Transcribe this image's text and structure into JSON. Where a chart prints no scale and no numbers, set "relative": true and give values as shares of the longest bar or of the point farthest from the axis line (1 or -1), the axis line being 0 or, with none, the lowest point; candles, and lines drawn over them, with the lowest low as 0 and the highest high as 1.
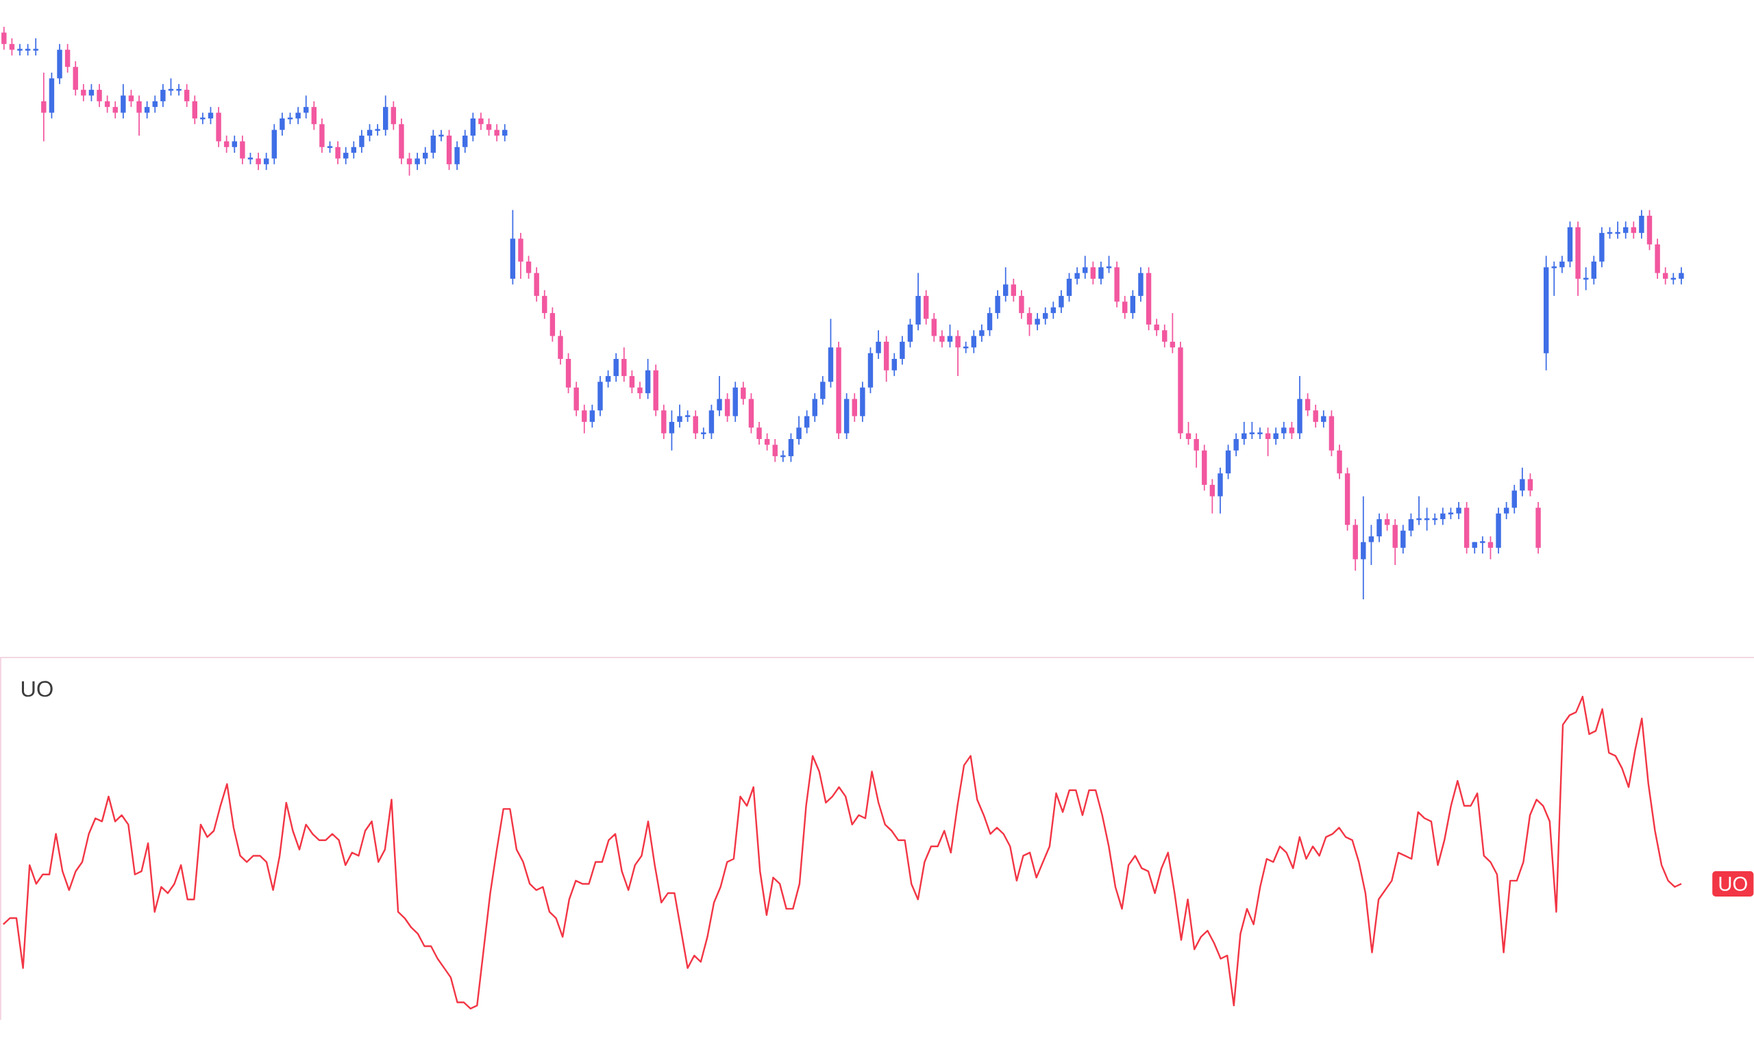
{
  "chart_data": [
    {
      "type": "candlestick",
      "relative": true,
      "categories": [
        null,
        null,
        null,
        null,
        null,
        null,
        null,
        null,
        null,
        null,
        null,
        null,
        null,
        null,
        null,
        null,
        null,
        null,
        null,
        null,
        null,
        null,
        null,
        null,
        null,
        null,
        null,
        null,
        null,
        null,
        null,
        null,
        null,
        null,
        null,
        null,
        null,
        null,
        null,
        null,
        null,
        null,
        null,
        null,
        null,
        null,
        null,
        null,
        null,
        null,
        null,
        null,
        null,
        null,
        null,
        null,
        null,
        null,
        null,
        null,
        null,
        null,
        null,
        null,
        null,
        null,
        null,
        null,
        null,
        null,
        null,
        null,
        null,
        null,
        null,
        null,
        null,
        null,
        null,
        null,
        null,
        null,
        null,
        null,
        null,
        null,
        null,
        null,
        null,
        null,
        null,
        null,
        null,
        null,
        null,
        null,
        null,
        null,
        null,
        null,
        null,
        null,
        null,
        null,
        null,
        null,
        null,
        null,
        null,
        null,
        null,
        null,
        null,
        null,
        null,
        null,
        null,
        null,
        null,
        null,
        null,
        null,
        null,
        null,
        null,
        null,
        null,
        null,
        null,
        null,
        null,
        null,
        null,
        null,
        null,
        null,
        null,
        null,
        null,
        null,
        null,
        null,
        null,
        null,
        null,
        null,
        null,
        null,
        null,
        null,
        null,
        null,
        null,
        null,
        null,
        null,
        null,
        null,
        null,
        null,
        null,
        null,
        null,
        null,
        null,
        null,
        null,
        null,
        null,
        null,
        null,
        null,
        null,
        null,
        null,
        null,
        null,
        null,
        null,
        null,
        null,
        null,
        null,
        null,
        null,
        null,
        null,
        null,
        null,
        null,
        null,
        null,
        null,
        null,
        null,
        null,
        null,
        null,
        null,
        null,
        null,
        null,
        null,
        null,
        null,
        null,
        null,
        null,
        null,
        null,
        null,
        null
      ],
      "ohlc": [
        [
          0.99,
          1.0,
          0.96,
          0.97
        ],
        [
          0.97,
          0.98,
          0.95,
          0.96
        ],
        [
          0.96,
          0.97,
          0.95,
          0.96
        ],
        [
          0.96,
          0.97,
          0.95,
          0.96
        ],
        [
          0.96,
          0.98,
          0.95,
          0.96
        ],
        [
          0.87,
          0.92,
          0.8,
          0.85
        ],
        [
          0.85,
          0.92,
          0.84,
          0.91
        ],
        [
          0.91,
          0.97,
          0.9,
          0.96
        ],
        [
          0.96,
          0.97,
          0.92,
          0.93
        ],
        [
          0.93,
          0.94,
          0.88,
          0.89
        ],
        [
          0.89,
          0.9,
          0.87,
          0.88
        ],
        [
          0.88,
          0.9,
          0.87,
          0.89
        ],
        [
          0.89,
          0.9,
          0.86,
          0.87
        ],
        [
          0.87,
          0.88,
          0.85,
          0.86
        ],
        [
          0.86,
          0.87,
          0.84,
          0.85
        ],
        [
          0.85,
          0.9,
          0.84,
          0.88
        ],
        [
          0.88,
          0.89,
          0.86,
          0.87
        ],
        [
          0.87,
          0.88,
          0.81,
          0.85
        ],
        [
          0.85,
          0.87,
          0.84,
          0.86
        ],
        [
          0.86,
          0.88,
          0.85,
          0.87
        ],
        [
          0.87,
          0.9,
          0.86,
          0.89
        ],
        [
          0.89,
          0.91,
          0.88,
          0.89
        ],
        [
          0.89,
          0.9,
          0.88,
          0.89
        ],
        [
          0.89,
          0.9,
          0.86,
          0.87
        ],
        [
          0.87,
          0.88,
          0.83,
          0.84
        ],
        [
          0.84,
          0.85,
          0.83,
          0.84
        ],
        [
          0.84,
          0.86,
          0.83,
          0.85
        ],
        [
          0.85,
          0.86,
          0.79,
          0.8
        ],
        [
          0.8,
          0.81,
          0.78,
          0.79
        ],
        [
          0.79,
          0.81,
          0.78,
          0.8
        ],
        [
          0.8,
          0.81,
          0.76,
          0.77
        ],
        [
          0.77,
          0.78,
          0.76,
          0.77
        ],
        [
          0.77,
          0.78,
          0.75,
          0.76
        ],
        [
          0.76,
          0.78,
          0.75,
          0.77
        ],
        [
          0.77,
          0.83,
          0.76,
          0.82
        ],
        [
          0.82,
          0.85,
          0.81,
          0.84
        ],
        [
          0.84,
          0.85,
          0.83,
          0.84
        ],
        [
          0.84,
          0.86,
          0.83,
          0.85
        ],
        [
          0.85,
          0.88,
          0.84,
          0.86
        ],
        [
          0.86,
          0.87,
          0.82,
          0.83
        ],
        [
          0.83,
          0.84,
          0.78,
          0.79
        ],
        [
          0.79,
          0.8,
          0.78,
          0.79
        ],
        [
          0.79,
          0.8,
          0.76,
          0.77
        ],
        [
          0.77,
          0.79,
          0.76,
          0.78
        ],
        [
          0.78,
          0.8,
          0.77,
          0.79
        ],
        [
          0.79,
          0.82,
          0.78,
          0.81
        ],
        [
          0.81,
          0.83,
          0.8,
          0.82
        ],
        [
          0.82,
          0.83,
          0.81,
          0.82
        ],
        [
          0.82,
          0.88,
          0.81,
          0.86
        ],
        [
          0.86,
          0.87,
          0.82,
          0.83
        ],
        [
          0.83,
          0.84,
          0.76,
          0.77
        ],
        [
          0.77,
          0.78,
          0.74,
          0.76
        ],
        [
          0.76,
          0.78,
          0.75,
          0.77
        ],
        [
          0.77,
          0.79,
          0.76,
          0.78
        ],
        [
          0.78,
          0.82,
          0.77,
          0.81
        ],
        [
          0.81,
          0.82,
          0.8,
          0.81
        ],
        [
          0.81,
          0.82,
          0.75,
          0.76
        ],
        [
          0.76,
          0.8,
          0.75,
          0.79
        ],
        [
          0.79,
          0.82,
          0.78,
          0.81
        ],
        [
          0.81,
          0.85,
          0.8,
          0.84
        ],
        [
          0.84,
          0.85,
          0.82,
          0.83
        ],
        [
          0.83,
          0.84,
          0.81,
          0.82
        ],
        [
          0.82,
          0.83,
          0.8,
          0.81
        ],
        [
          0.81,
          0.83,
          0.8,
          0.82
        ],
        [
          0.56,
          0.68,
          0.55,
          0.63
        ],
        [
          0.63,
          0.64,
          0.56,
          0.59
        ],
        [
          0.59,
          0.6,
          0.56,
          0.57
        ],
        [
          0.57,
          0.58,
          0.52,
          0.53
        ],
        [
          0.53,
          0.54,
          0.49,
          0.5
        ],
        [
          0.5,
          0.51,
          0.45,
          0.46
        ],
        [
          0.46,
          0.47,
          0.41,
          0.42
        ],
        [
          0.42,
          0.43,
          0.36,
          0.37
        ],
        [
          0.37,
          0.38,
          0.32,
          0.33
        ],
        [
          0.33,
          0.34,
          0.29,
          0.31
        ],
        [
          0.31,
          0.34,
          0.3,
          0.33
        ],
        [
          0.33,
          0.39,
          0.32,
          0.38
        ],
        [
          0.38,
          0.4,
          0.37,
          0.39
        ],
        [
          0.39,
          0.43,
          0.38,
          0.42
        ],
        [
          0.42,
          0.44,
          0.38,
          0.39
        ],
        [
          0.39,
          0.4,
          0.36,
          0.37
        ],
        [
          0.37,
          0.38,
          0.35,
          0.36
        ],
        [
          0.36,
          0.42,
          0.35,
          0.4
        ],
        [
          0.4,
          0.41,
          0.32,
          0.33
        ],
        [
          0.33,
          0.34,
          0.28,
          0.29
        ],
        [
          0.29,
          0.33,
          0.26,
          0.31
        ],
        [
          0.31,
          0.34,
          0.3,
          0.32
        ],
        [
          0.32,
          0.33,
          0.31,
          0.32
        ],
        [
          0.32,
          0.33,
          0.28,
          0.29
        ],
        [
          0.29,
          0.3,
          0.28,
          0.29
        ],
        [
          0.29,
          0.34,
          0.28,
          0.33
        ],
        [
          0.33,
          0.39,
          0.32,
          0.35
        ],
        [
          0.35,
          0.36,
          0.31,
          0.32
        ],
        [
          0.32,
          0.38,
          0.31,
          0.37
        ],
        [
          0.37,
          0.38,
          0.34,
          0.35
        ],
        [
          0.35,
          0.36,
          0.29,
          0.3
        ],
        [
          0.3,
          0.31,
          0.27,
          0.28
        ],
        [
          0.28,
          0.29,
          0.26,
          0.27
        ],
        [
          0.27,
          0.28,
          0.24,
          0.25
        ],
        [
          0.25,
          0.26,
          0.24,
          0.25
        ],
        [
          0.25,
          0.29,
          0.24,
          0.28
        ],
        [
          0.28,
          0.32,
          0.27,
          0.3
        ],
        [
          0.3,
          0.33,
          0.29,
          0.32
        ],
        [
          0.32,
          0.36,
          0.31,
          0.35
        ],
        [
          0.35,
          0.39,
          0.34,
          0.38
        ],
        [
          0.38,
          0.49,
          0.37,
          0.44
        ],
        [
          0.44,
          0.45,
          0.28,
          0.29
        ],
        [
          0.29,
          0.36,
          0.28,
          0.35
        ],
        [
          0.35,
          0.36,
          0.31,
          0.32
        ],
        [
          0.32,
          0.38,
          0.31,
          0.37
        ],
        [
          0.37,
          0.44,
          0.36,
          0.43
        ],
        [
          0.43,
          0.47,
          0.42,
          0.45
        ],
        [
          0.45,
          0.46,
          0.38,
          0.4
        ],
        [
          0.4,
          0.43,
          0.39,
          0.42
        ],
        [
          0.42,
          0.46,
          0.41,
          0.45
        ],
        [
          0.45,
          0.49,
          0.44,
          0.48
        ],
        [
          0.48,
          0.57,
          0.47,
          0.53
        ],
        [
          0.53,
          0.54,
          0.48,
          0.49
        ],
        [
          0.49,
          0.5,
          0.45,
          0.46
        ],
        [
          0.46,
          0.47,
          0.44,
          0.45
        ],
        [
          0.45,
          0.48,
          0.44,
          0.46
        ],
        [
          0.46,
          0.47,
          0.39,
          0.44
        ],
        [
          0.44,
          0.45,
          0.43,
          0.44
        ],
        [
          0.44,
          0.47,
          0.43,
          0.46
        ],
        [
          0.46,
          0.48,
          0.45,
          0.47
        ],
        [
          0.47,
          0.51,
          0.46,
          0.5
        ],
        [
          0.5,
          0.54,
          0.49,
          0.53
        ],
        [
          0.53,
          0.58,
          0.52,
          0.55
        ],
        [
          0.55,
          0.56,
          0.52,
          0.53
        ],
        [
          0.53,
          0.54,
          0.49,
          0.5
        ],
        [
          0.5,
          0.51,
          0.46,
          0.48
        ],
        [
          0.48,
          0.5,
          0.47,
          0.49
        ],
        [
          0.49,
          0.51,
          0.48,
          0.5
        ],
        [
          0.5,
          0.52,
          0.49,
          0.51
        ],
        [
          0.51,
          0.54,
          0.5,
          0.53
        ],
        [
          0.53,
          0.57,
          0.52,
          0.56
        ],
        [
          0.56,
          0.58,
          0.55,
          0.57
        ],
        [
          0.57,
          0.6,
          0.56,
          0.58
        ],
        [
          0.58,
          0.59,
          0.55,
          0.56
        ],
        [
          0.56,
          0.59,
          0.55,
          0.58
        ],
        [
          0.58,
          0.6,
          0.57,
          0.58
        ],
        [
          0.58,
          0.59,
          0.51,
          0.52
        ],
        [
          0.52,
          0.53,
          0.49,
          0.5
        ],
        [
          0.5,
          0.54,
          0.49,
          0.53
        ],
        [
          0.53,
          0.58,
          0.52,
          0.57
        ],
        [
          0.57,
          0.58,
          0.47,
          0.48
        ],
        [
          0.48,
          0.49,
          0.46,
          0.47
        ],
        [
          0.47,
          0.48,
          0.44,
          0.45
        ],
        [
          0.45,
          0.5,
          0.43,
          0.44
        ],
        [
          0.44,
          0.45,
          0.28,
          0.29
        ],
        [
          0.29,
          0.31,
          0.27,
          0.28
        ],
        [
          0.28,
          0.29,
          0.23,
          0.26
        ],
        [
          0.26,
          0.27,
          0.19,
          0.2
        ],
        [
          0.2,
          0.21,
          0.15,
          0.18
        ],
        [
          0.18,
          0.23,
          0.15,
          0.22
        ],
        [
          0.22,
          0.27,
          0.21,
          0.26
        ],
        [
          0.26,
          0.29,
          0.25,
          0.28
        ],
        [
          0.28,
          0.31,
          0.27,
          0.29
        ],
        [
          0.29,
          0.31,
          0.28,
          0.29
        ],
        [
          0.29,
          0.3,
          0.28,
          0.29
        ],
        [
          0.29,
          0.3,
          0.25,
          0.28
        ],
        [
          0.28,
          0.3,
          0.27,
          0.29
        ],
        [
          0.29,
          0.31,
          0.28,
          0.3
        ],
        [
          0.3,
          0.31,
          0.28,
          0.29
        ],
        [
          0.29,
          0.39,
          0.28,
          0.35
        ],
        [
          0.35,
          0.36,
          0.32,
          0.33
        ],
        [
          0.33,
          0.34,
          0.3,
          0.31
        ],
        [
          0.31,
          0.33,
          0.3,
          0.32
        ],
        [
          0.32,
          0.33,
          0.25,
          0.26
        ],
        [
          0.26,
          0.27,
          0.21,
          0.22
        ],
        [
          0.22,
          0.23,
          0.12,
          0.13
        ],
        [
          0.13,
          0.14,
          0.05,
          0.07
        ],
        [
          0.07,
          0.18,
          0.0,
          0.1
        ],
        [
          0.1,
          0.13,
          0.06,
          0.11
        ],
        [
          0.11,
          0.15,
          0.1,
          0.14
        ],
        [
          0.14,
          0.15,
          0.12,
          0.13
        ],
        [
          0.13,
          0.14,
          0.06,
          0.09
        ],
        [
          0.09,
          0.13,
          0.08,
          0.12
        ],
        [
          0.12,
          0.15,
          0.11,
          0.14
        ],
        [
          0.14,
          0.18,
          0.13,
          0.14
        ],
        [
          0.14,
          0.16,
          0.12,
          0.14
        ],
        [
          0.14,
          0.15,
          0.13,
          0.14
        ],
        [
          0.14,
          0.16,
          0.13,
          0.15
        ],
        [
          0.15,
          0.16,
          0.14,
          0.15
        ],
        [
          0.15,
          0.17,
          0.14,
          0.16
        ],
        [
          0.16,
          0.17,
          0.08,
          0.09
        ],
        [
          0.09,
          0.1,
          0.08,
          0.1
        ],
        [
          0.1,
          0.11,
          0.08,
          0.1
        ],
        [
          0.1,
          0.11,
          0.07,
          0.09
        ],
        [
          0.09,
          0.16,
          0.08,
          0.15
        ],
        [
          0.15,
          0.17,
          0.14,
          0.16
        ],
        [
          0.16,
          0.2,
          0.15,
          0.19
        ],
        [
          0.19,
          0.23,
          0.18,
          0.21
        ],
        [
          0.21,
          0.22,
          0.18,
          0.19
        ],
        [
          0.16,
          0.17,
          0.08,
          0.09
        ],
        [
          0.43,
          0.6,
          0.4,
          0.58
        ],
        [
          0.58,
          0.59,
          0.53,
          0.58
        ],
        [
          0.58,
          0.6,
          0.57,
          0.59
        ],
        [
          0.59,
          0.66,
          0.58,
          0.65
        ],
        [
          0.65,
          0.66,
          0.53,
          0.56
        ],
        [
          0.56,
          0.58,
          0.54,
          0.56
        ],
        [
          0.56,
          0.6,
          0.55,
          0.59
        ],
        [
          0.59,
          0.65,
          0.58,
          0.64
        ],
        [
          0.64,
          0.65,
          0.63,
          0.64
        ],
        [
          0.64,
          0.66,
          0.63,
          0.64
        ],
        [
          0.64,
          0.66,
          0.63,
          0.65
        ],
        [
          0.65,
          0.66,
          0.63,
          0.64
        ],
        [
          0.64,
          0.68,
          0.63,
          0.67
        ],
        [
          0.67,
          0.68,
          0.61,
          0.62
        ],
        [
          0.62,
          0.63,
          0.56,
          0.57
        ],
        [
          0.57,
          0.58,
          0.55,
          0.56
        ],
        [
          0.56,
          0.57,
          0.55,
          0.56
        ],
        [
          0.56,
          0.58,
          0.55,
          0.57
        ]
      ]
    },
    {
      "type": "line",
      "relative": true,
      "title": "UO",
      "categories": [
        null,
        null,
        null,
        null,
        null,
        null,
        null,
        null,
        null,
        null,
        null,
        null,
        null,
        null,
        null,
        null,
        null,
        null,
        null,
        null,
        null,
        null,
        null,
        null,
        null,
        null,
        null,
        null,
        null,
        null,
        null,
        null,
        null,
        null,
        null,
        null,
        null,
        null,
        null,
        null,
        null,
        null,
        null,
        null,
        null,
        null,
        null,
        null,
        null,
        null,
        null,
        null,
        null,
        null,
        null,
        null,
        null,
        null,
        null,
        null,
        null,
        null,
        null,
        null,
        null,
        null,
        null,
        null,
        null,
        null,
        null,
        null,
        null,
        null,
        null,
        null,
        null,
        null,
        null,
        null,
        null,
        null,
        null,
        null,
        null,
        null,
        null,
        null,
        null,
        null,
        null,
        null,
        null,
        null,
        null,
        null,
        null,
        null,
        null,
        null,
        null,
        null,
        null,
        null,
        null,
        null,
        null,
        null,
        null,
        null,
        null,
        null,
        null,
        null,
        null,
        null,
        null,
        null,
        null,
        null,
        null,
        null,
        null,
        null,
        null,
        null,
        null,
        null,
        null,
        null,
        null,
        null,
        null,
        null,
        null,
        null,
        null,
        null,
        null,
        null,
        null,
        null,
        null,
        null,
        null,
        null,
        null,
        null,
        null,
        null,
        null,
        null,
        null,
        null,
        null,
        null,
        null,
        null,
        null,
        null,
        null,
        null,
        null,
        null,
        null,
        null,
        null,
        null,
        null,
        null,
        null,
        null,
        null,
        null,
        null,
        null,
        null,
        null,
        null,
        null,
        null,
        null,
        null,
        null,
        null,
        null,
        null,
        null,
        null,
        null,
        null,
        null,
        null,
        null,
        null,
        null,
        null,
        null,
        null,
        null,
        null,
        null,
        null,
        null,
        null,
        null,
        null,
        null,
        null,
        null,
        null,
        null,
        null,
        null,
        null,
        null,
        null,
        null,
        null,
        null,
        null,
        null,
        null,
        null,
        null,
        null,
        null,
        null,
        null,
        null,
        null,
        null,
        null,
        null,
        null,
        null,
        null,
        null,
        null,
        null,
        null,
        null,
        null,
        null,
        null,
        null,
        null,
        null,
        null,
        null,
        null,
        null,
        null,
        null,
        null,
        null
      ],
      "series": [
        {
          "name": "UO",
          "color": "#f23645",
          "values": [
            0.27,
            0.29,
            0.29,
            0.13,
            0.46,
            0.4,
            0.43,
            0.43,
            0.56,
            0.44,
            0.38,
            0.44,
            0.47,
            0.56,
            0.61,
            0.6,
            0.68,
            0.6,
            0.62,
            0.59,
            0.43,
            0.44,
            0.53,
            0.31,
            0.39,
            0.37,
            0.4,
            0.46,
            0.35,
            0.35,
            0.59,
            0.55,
            0.57,
            0.65,
            0.72,
            0.58,
            0.49,
            0.47,
            0.49,
            0.49,
            0.47,
            0.38,
            0.49,
            0.66,
            0.57,
            0.51,
            0.59,
            0.56,
            0.54,
            0.54,
            0.56,
            0.54,
            0.46,
            0.5,
            0.49,
            0.57,
            0.6,
            0.47,
            0.51,
            0.67,
            0.31,
            0.29,
            0.26,
            0.24,
            0.2,
            0.2,
            0.16,
            0.13,
            0.1,
            0.02,
            0.02,
            0,
            0.01,
            0.19,
            0.37,
            0.51,
            0.64,
            0.64,
            0.51,
            0.47,
            0.4,
            0.38,
            0.39,
            0.31,
            0.29,
            0.23,
            0.35,
            0.41,
            0.4,
            0.4,
            0.47,
            0.47,
            0.54,
            0.56,
            0.44,
            0.38,
            0.46,
            0.49,
            0.6,
            0.46,
            0.34,
            0.37,
            0.37,
            0.25,
            0.13,
            0.17,
            0.15,
            0.23,
            0.34,
            0.39,
            0.47,
            0.48,
            0.68,
            0.65,
            0.71,
            0.44,
            0.3,
            0.42,
            0.4,
            0.32,
            0.32,
            0.4,
            0.65,
            0.81,
            0.76,
            0.66,
            0.68,
            0.71,
            0.68,
            0.59,
            0.62,
            0.61,
            0.76,
            0.66,
            0.59,
            0.57,
            0.54,
            0.54,
            0.4,
            0.35,
            0.47,
            0.52,
            0.52,
            0.57,
            0.5,
            0.65,
            0.78,
            0.81,
            0.67,
            0.62,
            0.56,
            0.58,
            0.56,
            0.52,
            0.41,
            0.49,
            0.5,
            0.42,
            0.47,
            0.52,
            0.69,
            0.63,
            0.7,
            0.7,
            0.62,
            0.7,
            0.7,
            0.62,
            0.52,
            0.39,
            0.32,
            0.46,
            0.49,
            0.45,
            0.44,
            0.37,
            0.45,
            0.5,
            0.37,
            0.22,
            0.35,
            0.19,
            0.23,
            0.25,
            0.21,
            0.16,
            0.17,
            0.01,
            0.24,
            0.32,
            0.27,
            0.39,
            0.48,
            0.47,
            0.52,
            0.5,
            0.45,
            0.55,
            0.48,
            0.52,
            0.49,
            0.55,
            0.56,
            0.58,
            0.55,
            0.54,
            0.47,
            0.37,
            0.18,
            0.35,
            0.38,
            0.41,
            0.5,
            0.49,
            0.48,
            0.63,
            0.61,
            0.6,
            0.46,
            0.54,
            0.65,
            0.73,
            0.65,
            0.65,
            0.69,
            0.49,
            0.47,
            0.43,
            0.18,
            0.41,
            0.41,
            0.47,
            0.62,
            0.67,
            0.65,
            0.6,
            0.31,
            0.91,
            0.94,
            0.95,
            1.0,
            0.88,
            0.89,
            0.96,
            0.82,
            0.81,
            0.77,
            0.71,
            0.83,
            0.93,
            0.72,
            0.57,
            0.46,
            0.41,
            0.39,
            0.4
          ]
        }
      ]
    }
  ]
}
